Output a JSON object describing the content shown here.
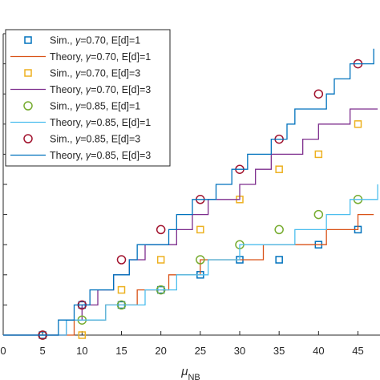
{
  "chart_data": {
    "type": "line",
    "xlabel": "μNB",
    "xlabel_main": "μ",
    "xlabel_sub": "NB",
    "xlim": [
      0,
      48
    ],
    "xticks": [
      0,
      5,
      10,
      15,
      20,
      25,
      30,
      35,
      40,
      45
    ],
    "xtick_labels": [
      "0",
      "5",
      "10",
      "15",
      "20",
      "25",
      "30",
      "35",
      "40",
      "45"
    ],
    "ylim": [
      0,
      10
    ],
    "yticks": [
      0,
      1,
      2,
      3,
      4,
      5,
      6,
      7,
      8,
      9,
      10
    ],
    "grid": false,
    "legend_position": "top-left",
    "series": [
      {
        "name": "Sim., γ=0.70, E[d]=1",
        "name_parts": [
          "Sim., ",
          "γ",
          "=0.70, E[d]=1"
        ],
        "kind": "markers",
        "marker": "square",
        "color": "#0072BD",
        "x": [
          5,
          10,
          15,
          20,
          25,
          30,
          35,
          40,
          45
        ],
        "y": [
          0,
          1,
          1,
          1.5,
          2,
          2.5,
          2.5,
          3,
          3.5
        ]
      },
      {
        "name": "Theory, γ=0.70, E[d]=1",
        "name_parts": [
          "Theory, ",
          "γ",
          "=0.70, E[d]=1"
        ],
        "kind": "step",
        "color": "#D95319",
        "x": [
          0,
          9,
          13,
          17,
          21,
          25,
          28,
          33,
          37,
          41,
          45,
          47
        ],
        "y": [
          0,
          0.5,
          1,
          1.5,
          2,
          2.5,
          2.5,
          3,
          3,
          3.5,
          4,
          4
        ]
      },
      {
        "name": "Sim., γ=0.70, E[d]=3",
        "name_parts": [
          "Sim., ",
          "γ",
          "=0.70, E[d]=3"
        ],
        "kind": "markers",
        "marker": "square",
        "color": "#EDB120",
        "x": [
          10,
          15,
          20,
          25,
          30,
          35,
          40,
          45
        ],
        "y": [
          0,
          1.5,
          2.5,
          3.5,
          4.5,
          5.5,
          6,
          7
        ]
      },
      {
        "name": "Theory, γ=0.70, E[d]=3",
        "name_parts": [
          "Theory, ",
          "γ",
          "=0.70, E[d]=3"
        ],
        "kind": "step",
        "color": "#7E2F8E",
        "x": [
          0,
          8,
          10,
          12,
          14,
          16,
          18,
          20,
          22,
          24,
          26,
          28,
          30,
          32,
          34,
          36,
          38,
          40,
          42,
          44,
          46,
          47.5
        ],
        "y": [
          0,
          0.5,
          1,
          1.5,
          2,
          2.5,
          3,
          3,
          3.5,
          4,
          4.5,
          4.5,
          5,
          5.5,
          6,
          6,
          6.5,
          7,
          7,
          7.5,
          7.5,
          7.5
        ]
      },
      {
        "name": "Sim., γ=0.85, E[d]=1",
        "name_parts": [
          "Sim., ",
          "γ",
          "=0.85, E[d]=1"
        ],
        "kind": "markers",
        "marker": "circle",
        "color": "#77AC30",
        "x": [
          5,
          10,
          15,
          20,
          25,
          30,
          35,
          40,
          45
        ],
        "y": [
          0,
          0.5,
          1,
          1.5,
          2.5,
          3,
          3.5,
          4,
          4.5
        ]
      },
      {
        "name": "Theory, γ=0.85, E[d]=1",
        "name_parts": [
          "Theory, ",
          "γ",
          "=0.85, E[d]=1"
        ],
        "kind": "step",
        "color": "#4DBEEE",
        "x": [
          0,
          8,
          13,
          18,
          22,
          26,
          30,
          33,
          37,
          41,
          44,
          47.5
        ],
        "y": [
          0,
          0.5,
          1,
          1.5,
          2,
          2.5,
          3,
          3,
          3.5,
          4,
          4.5,
          5
        ]
      },
      {
        "name": "Sim., γ=0.85, E[d]=3",
        "name_parts": [
          "Sim., ",
          "γ",
          "=0.85, E[d]=3"
        ],
        "kind": "markers",
        "marker": "circle",
        "color": "#A2142F",
        "x": [
          5,
          10,
          15,
          20,
          25,
          30,
          35,
          40,
          45
        ],
        "y": [
          0,
          1,
          2.5,
          3.5,
          4.5,
          5.5,
          6.5,
          8,
          9
        ]
      },
      {
        "name": "Theory, γ=0.85, E[d]=3",
        "name_parts": [
          "Theory, ",
          "γ",
          "=0.85, E[d]=3"
        ],
        "kind": "step",
        "color": "#0072BD",
        "x": [
          0,
          7,
          9,
          11,
          12,
          14,
          16,
          17,
          19,
          21,
          22,
          24,
          26,
          27,
          29,
          31,
          32,
          34,
          36,
          37,
          39,
          41,
          42,
          44,
          46,
          47
        ],
        "y": [
          0,
          0.5,
          1,
          1.5,
          1.5,
          2,
          2.5,
          3,
          3,
          3.5,
          4,
          4.5,
          4.5,
          5,
          5.5,
          6,
          6,
          6.5,
          7,
          7.5,
          7.5,
          8,
          8.5,
          9,
          9,
          9.5
        ]
      }
    ]
  }
}
